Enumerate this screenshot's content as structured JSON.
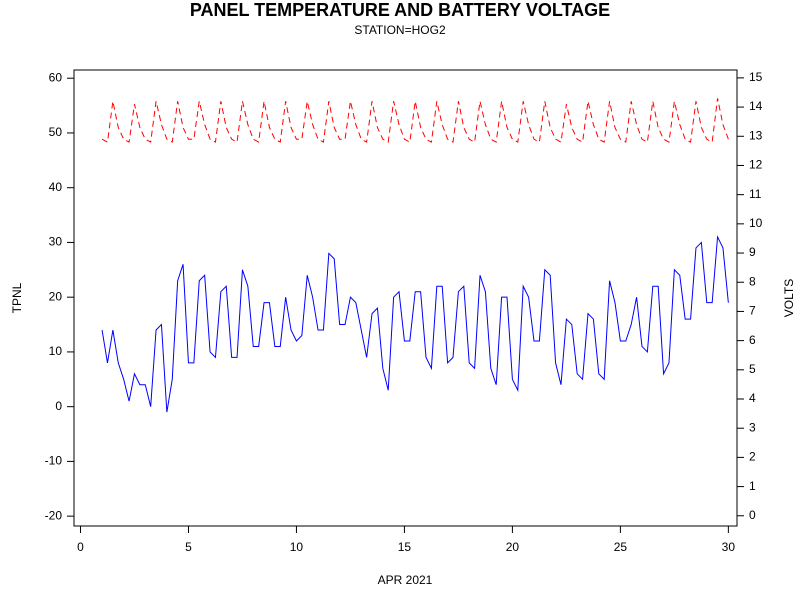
{
  "chart_data": {
    "type": "line",
    "title": "PANEL TEMPERATURE AND BATTERY VOLTAGE",
    "subtitle": "STATION=HOG2",
    "x_label": "APR 2021",
    "y_label": "TPNL",
    "y2_label": "VOLTS",
    "xlim": [
      -0.3,
      30.4
    ],
    "xticks": [
      0,
      5,
      10,
      15,
      20,
      25,
      30
    ],
    "ylim": [
      -21.8,
      61.5
    ],
    "yticks": [
      -20,
      -10,
      0,
      10,
      20,
      30,
      40,
      50,
      60
    ],
    "y2lim": [
      -0.35,
      15.27
    ],
    "y2ticks": [
      0,
      1,
      2,
      3,
      4,
      5,
      6,
      7,
      8,
      9,
      10,
      11,
      12,
      13,
      14,
      15
    ],
    "grid": false,
    "x": [
      1,
      1.25,
      1.5,
      1.75,
      2,
      2.25,
      2.5,
      2.75,
      3,
      3.25,
      3.5,
      3.75,
      4,
      4.25,
      4.5,
      4.75,
      5,
      5.25,
      5.5,
      5.75,
      6,
      6.25,
      6.5,
      6.75,
      7,
      7.25,
      7.5,
      7.75,
      8,
      8.25,
      8.5,
      8.75,
      9,
      9.25,
      9.5,
      9.75,
      10,
      10.25,
      10.5,
      10.75,
      11,
      11.25,
      11.5,
      11.75,
      12,
      12.25,
      12.5,
      12.75,
      13,
      13.25,
      13.5,
      13.75,
      14,
      14.25,
      14.5,
      14.75,
      15,
      15.25,
      15.5,
      15.75,
      16,
      16.25,
      16.5,
      16.75,
      17,
      17.25,
      17.5,
      17.75,
      18,
      18.25,
      18.5,
      18.75,
      19,
      19.25,
      19.5,
      19.75,
      20,
      20.25,
      20.5,
      20.75,
      21,
      21.25,
      21.5,
      21.75,
      22,
      22.25,
      22.5,
      22.75,
      23,
      23.25,
      23.5,
      23.75,
      24,
      24.25,
      24.5,
      24.75,
      25,
      25.25,
      25.5,
      25.75,
      26,
      26.25,
      26.5,
      26.75,
      27,
      27.25,
      27.5,
      27.75,
      28,
      28.25,
      28.5,
      28.75,
      29,
      29.25,
      29.5,
      29.75,
      30
    ],
    "series": [
      {
        "name": "TPNL",
        "color": "#0000ff",
        "dashed": false,
        "axis": "y",
        "values": [
          14,
          8,
          14,
          8,
          5,
          1,
          6,
          4,
          4,
          0,
          14,
          15,
          -1,
          5,
          23,
          26,
          8,
          8,
          23,
          24,
          10,
          9,
          21,
          22,
          9,
          9,
          25,
          22,
          11,
          11,
          19,
          19,
          11,
          11,
          20,
          14,
          12,
          13,
          24,
          20,
          14,
          14,
          28,
          27,
          15,
          15,
          20,
          19,
          14,
          9,
          17,
          18,
          7,
          3,
          20,
          21,
          12,
          12,
          21,
          21,
          9,
          7,
          22,
          22,
          8,
          9,
          21,
          22,
          8,
          7,
          24,
          21,
          7,
          4,
          20,
          20,
          5,
          3,
          22,
          20,
          12,
          12,
          25,
          24,
          8,
          4,
          16,
          15,
          6,
          5,
          17,
          16,
          6,
          5,
          23,
          19,
          12,
          12,
          15,
          20,
          11,
          10,
          22,
          22,
          6,
          8,
          25,
          24,
          16,
          16,
          29,
          30,
          19,
          19,
          31,
          29,
          19
        ]
      },
      {
        "name": "VOLTS",
        "color": "#ff0000",
        "dashed": true,
        "axis": "y2",
        "values": [
          12.9,
          12.8,
          14.2,
          13.3,
          12.9,
          12.8,
          14.1,
          13.3,
          12.9,
          12.8,
          14.2,
          13.4,
          12.9,
          12.8,
          14.2,
          13.3,
          12.9,
          12.9,
          14.2,
          13.4,
          12.9,
          12.8,
          14.2,
          13.3,
          12.9,
          12.8,
          14.2,
          13.4,
          12.9,
          12.8,
          14.2,
          13.3,
          12.9,
          12.8,
          14.2,
          13.3,
          12.9,
          12.9,
          14.2,
          13.4,
          12.9,
          12.8,
          14.2,
          13.3,
          12.9,
          12.9,
          14.2,
          13.4,
          12.9,
          12.8,
          14.2,
          13.3,
          12.9,
          12.8,
          14.2,
          13.4,
          12.9,
          12.8,
          14.2,
          13.3,
          12.9,
          12.8,
          14.2,
          13.4,
          12.9,
          12.8,
          14.2,
          13.3,
          12.9,
          12.8,
          14.2,
          13.4,
          12.9,
          12.8,
          14.2,
          13.3,
          12.9,
          12.8,
          14.2,
          13.4,
          12.9,
          12.8,
          14.2,
          13.3,
          12.9,
          12.8,
          14.1,
          13.3,
          12.9,
          12.8,
          14.2,
          13.4,
          12.9,
          12.8,
          14.2,
          13.3,
          12.9,
          12.8,
          14.2,
          13.4,
          12.9,
          12.8,
          14.2,
          13.3,
          12.9,
          12.8,
          14.2,
          13.4,
          12.9,
          12.8,
          14.2,
          13.3,
          12.9,
          12.8,
          14.3,
          13.4,
          12.9
        ]
      }
    ]
  }
}
